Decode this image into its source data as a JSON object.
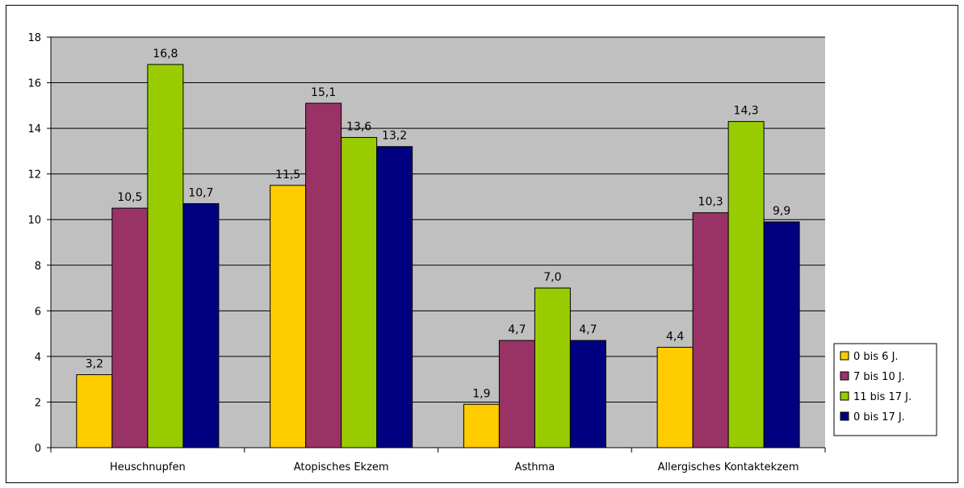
{
  "chart_data": {
    "type": "bar",
    "categories": [
      "Heuschnupfen",
      "Atopisches Ekzem",
      "Asthma",
      "Allergisches Kontaktekzem"
    ],
    "series": [
      {
        "name": "0 bis 6 J.",
        "color": "#FFCC00",
        "values": [
          3.2,
          11.5,
          1.9,
          4.4
        ],
        "labels": [
          "3,2",
          "11,5",
          "1,9",
          "4,4"
        ]
      },
      {
        "name": "7 bis 10 J.",
        "color": "#993366",
        "values": [
          10.5,
          15.1,
          4.7,
          10.3
        ],
        "labels": [
          "10,5",
          "15,1",
          "4,7",
          "10,3"
        ]
      },
      {
        "name": "11 bis 17 J.",
        "color": "#99CC00",
        "values": [
          16.8,
          13.6,
          7.0,
          14.3
        ],
        "labels": [
          "16,8",
          "13,6",
          "7,0",
          "14,3"
        ]
      },
      {
        "name": "0 bis 17 J.",
        "color": "#000080",
        "values": [
          10.7,
          13.2,
          4.7,
          9.9
        ],
        "labels": [
          "10,7",
          "13,2",
          "4,7",
          "9,9"
        ]
      }
    ],
    "ylim": [
      0,
      18
    ],
    "yticks": [
      0,
      2,
      4,
      6,
      8,
      10,
      12,
      14,
      16,
      18
    ],
    "grid": true,
    "plot_background": "#C0C0C0",
    "legend_position": "right"
  }
}
